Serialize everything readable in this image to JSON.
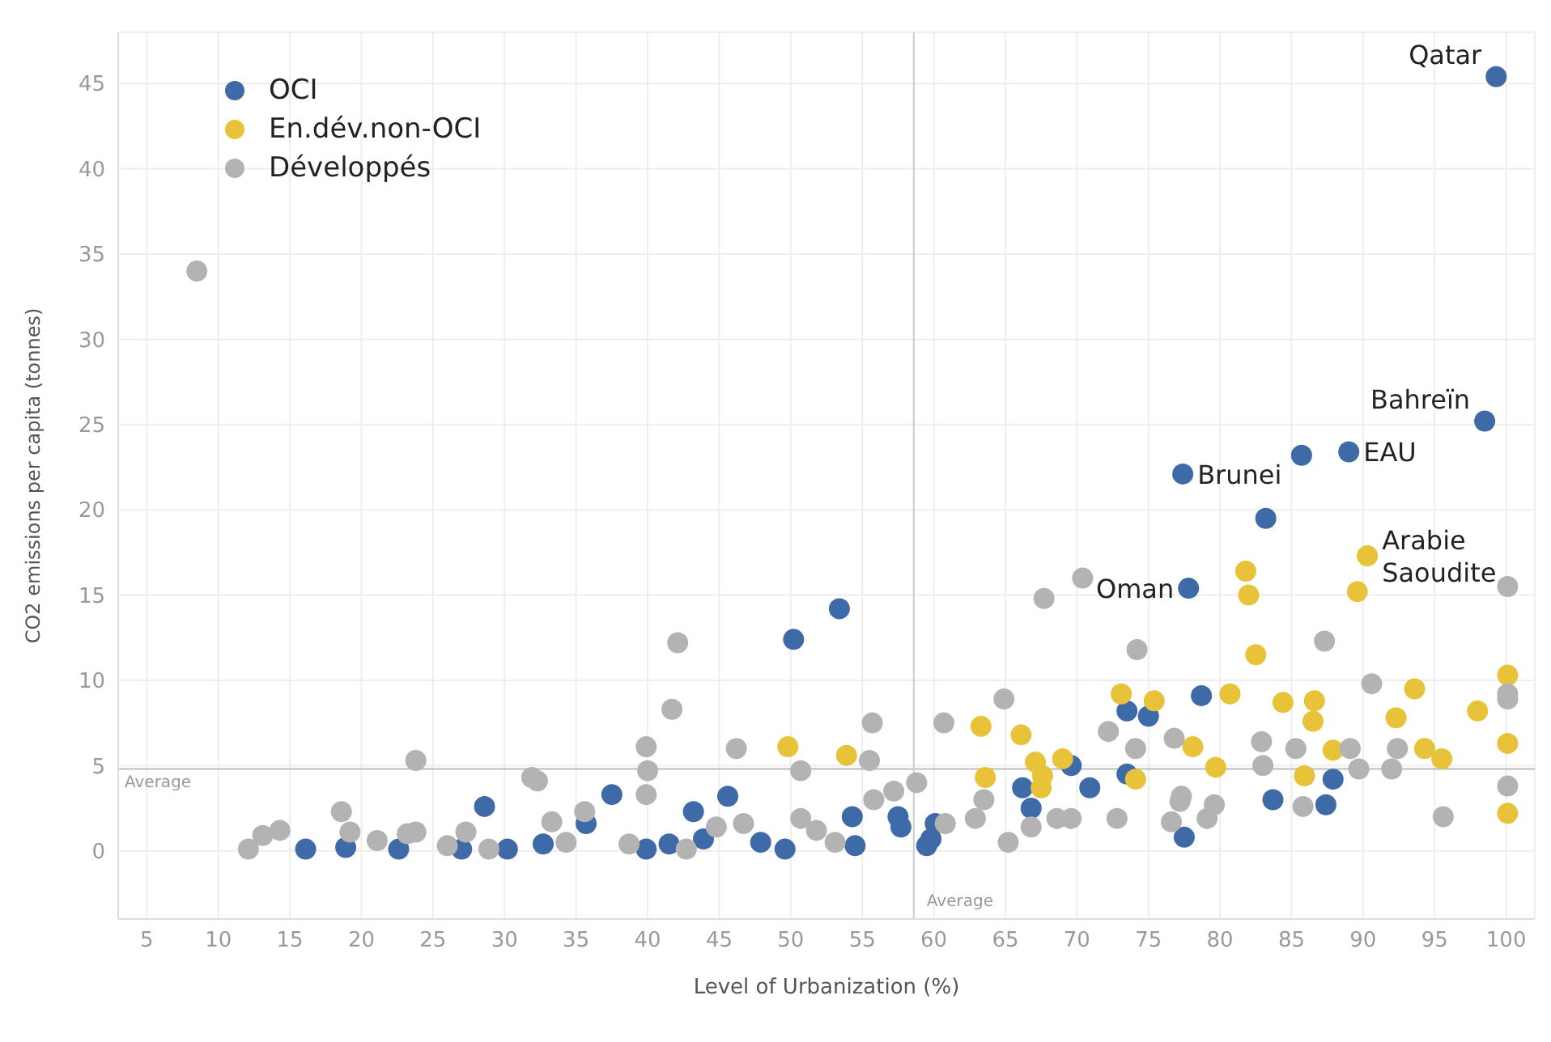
{
  "chart_data": {
    "type": "scatter",
    "xlabel": "Level of Urbanization (%)",
    "ylabel": "CO2 emissions per capita (tonnes)",
    "xlim": [
      3,
      102
    ],
    "ylim": [
      -4,
      48
    ],
    "xticks": [
      5,
      10,
      15,
      20,
      25,
      30,
      35,
      40,
      45,
      50,
      55,
      60,
      65,
      70,
      75,
      80,
      85,
      90,
      95,
      100
    ],
    "yticks": [
      0,
      5,
      10,
      15,
      20,
      25,
      30,
      35,
      40,
      45
    ],
    "grid": true,
    "legend": "top left",
    "marker": "circle",
    "ref_lines": [
      {
        "axis": "y",
        "value": 4.8,
        "label": "Average"
      },
      {
        "axis": "x",
        "value": 58.6,
        "label": "Average"
      }
    ],
    "annotations": [
      {
        "text": "Qatar",
        "x": 99.3,
        "y": 45.4
      },
      {
        "text": "Bahreïn",
        "x": 98.5,
        "y": 25.2
      },
      {
        "text": "EAU",
        "x": 89.0,
        "y": 23.4
      },
      {
        "text": "Brunei",
        "x": 77.4,
        "y": 22.1
      },
      {
        "text": "Oman",
        "x": 77.8,
        "y": 15.4
      },
      {
        "text": "Arabie Saoudite",
        "x": 90.3,
        "y": 17.3
      }
    ],
    "series": [
      {
        "name": "OCI",
        "color": "#3f6aa8",
        "x": [
          99.3,
          98.5,
          89.0,
          85.7,
          77.4,
          83.2,
          77.8,
          78.7,
          73.5,
          75.0,
          53.4,
          50.2,
          16.1,
          18.9,
          22.6,
          27.0,
          28.6,
          30.2,
          32.7,
          35.7,
          37.5,
          39.9,
          41.5,
          43.2,
          43.9,
          45.6,
          47.9,
          49.6,
          54.3,
          54.5,
          57.5,
          57.7,
          59.5,
          59.8,
          60.1,
          66.2,
          66.8,
          69.6,
          70.9,
          73.5,
          77.5,
          83.7,
          87.4,
          87.9
        ],
        "values": [
          45.4,
          25.2,
          23.4,
          23.2,
          22.1,
          19.5,
          15.4,
          9.1,
          8.2,
          7.9,
          14.2,
          12.4,
          0.1,
          0.2,
          0.1,
          0.1,
          2.6,
          0.1,
          0.4,
          1.6,
          3.3,
          0.1,
          0.4,
          2.3,
          0.7,
          3.2,
          0.5,
          0.1,
          2.0,
          0.3,
          2.0,
          1.4,
          0.3,
          0.7,
          1.6,
          3.7,
          2.5,
          5.0,
          3.7,
          4.5,
          0.8,
          3.0,
          2.7,
          4.2
        ]
      },
      {
        "name": "En.dév.non-OCI",
        "color": "#e8c33a",
        "x": [
          90.3,
          89.6,
          81.8,
          82.0,
          82.5,
          73.1,
          75.4,
          80.7,
          84.4,
          86.6,
          86.5,
          93.6,
          92.3,
          98.0,
          100.1,
          100.1,
          100.1,
          78.1,
          79.7,
          87.9,
          94.3,
          95.5,
          85.9,
          74.1,
          67.1,
          69.0,
          49.8,
          63.3,
          66.1,
          63.6,
          67.5,
          53.9,
          67.6
        ],
        "values": [
          17.3,
          15.2,
          16.4,
          15.0,
          11.5,
          9.2,
          8.8,
          9.2,
          8.7,
          8.8,
          7.6,
          9.5,
          7.8,
          8.2,
          10.3,
          6.3,
          2.2,
          6.1,
          4.9,
          5.9,
          6.0,
          5.4,
          4.4,
          4.2,
          5.2,
          5.4,
          6.1,
          7.3,
          6.8,
          4.3,
          3.7,
          5.6,
          4.4
        ]
      },
      {
        "name": "Développés",
        "color": "#b3b3b3",
        "x": [
          8.5,
          23.8,
          31.9,
          32.3,
          18.6,
          14.3,
          13.1,
          12.1,
          23.8,
          19.2,
          21.1,
          23.2,
          26.0,
          27.3,
          28.9,
          33.3,
          34.3,
          35.6,
          38.7,
          39.9,
          40.0,
          39.9,
          42.7,
          44.8,
          46.2,
          46.7,
          50.7,
          50.7,
          51.8,
          53.1,
          55.5,
          55.8,
          57.2,
          58.8,
          60.8,
          62.9,
          63.5,
          65.2,
          66.8,
          68.6,
          69.6,
          72.8,
          74.1,
          76.6,
          77.3,
          76.8,
          79.1,
          79.6,
          83.0,
          85.3,
          85.8,
          89.1,
          89.7,
          92.0,
          92.4,
          95.6,
          100.1,
          42.1,
          41.7,
          55.7,
          60.7,
          64.9,
          67.7,
          70.4,
          74.2,
          87.3,
          100.1,
          90.6,
          72.2,
          82.9,
          100.1,
          100.1,
          77.2
        ],
        "values": [
          34.0,
          5.3,
          4.3,
          4.1,
          2.3,
          1.2,
          0.9,
          0.1,
          1.1,
          1.1,
          0.6,
          1.0,
          0.3,
          1.1,
          0.1,
          1.7,
          0.5,
          2.3,
          0.4,
          6.1,
          4.7,
          3.3,
          0.1,
          1.4,
          6.0,
          1.6,
          4.7,
          1.9,
          1.2,
          0.5,
          5.3,
          3.0,
          3.5,
          4.0,
          1.6,
          1.9,
          3.0,
          0.5,
          1.4,
          1.9,
          1.9,
          1.9,
          6.0,
          1.7,
          3.2,
          6.6,
          1.9,
          2.7,
          5.0,
          6.0,
          2.6,
          6.0,
          4.8,
          4.8,
          6.0,
          2.0,
          3.8,
          12.2,
          8.3,
          7.5,
          7.5,
          8.9,
          14.8,
          16.0,
          11.8,
          12.3,
          15.5,
          9.8,
          7.0,
          6.4,
          8.9,
          9.2,
          2.9
        ]
      }
    ]
  }
}
